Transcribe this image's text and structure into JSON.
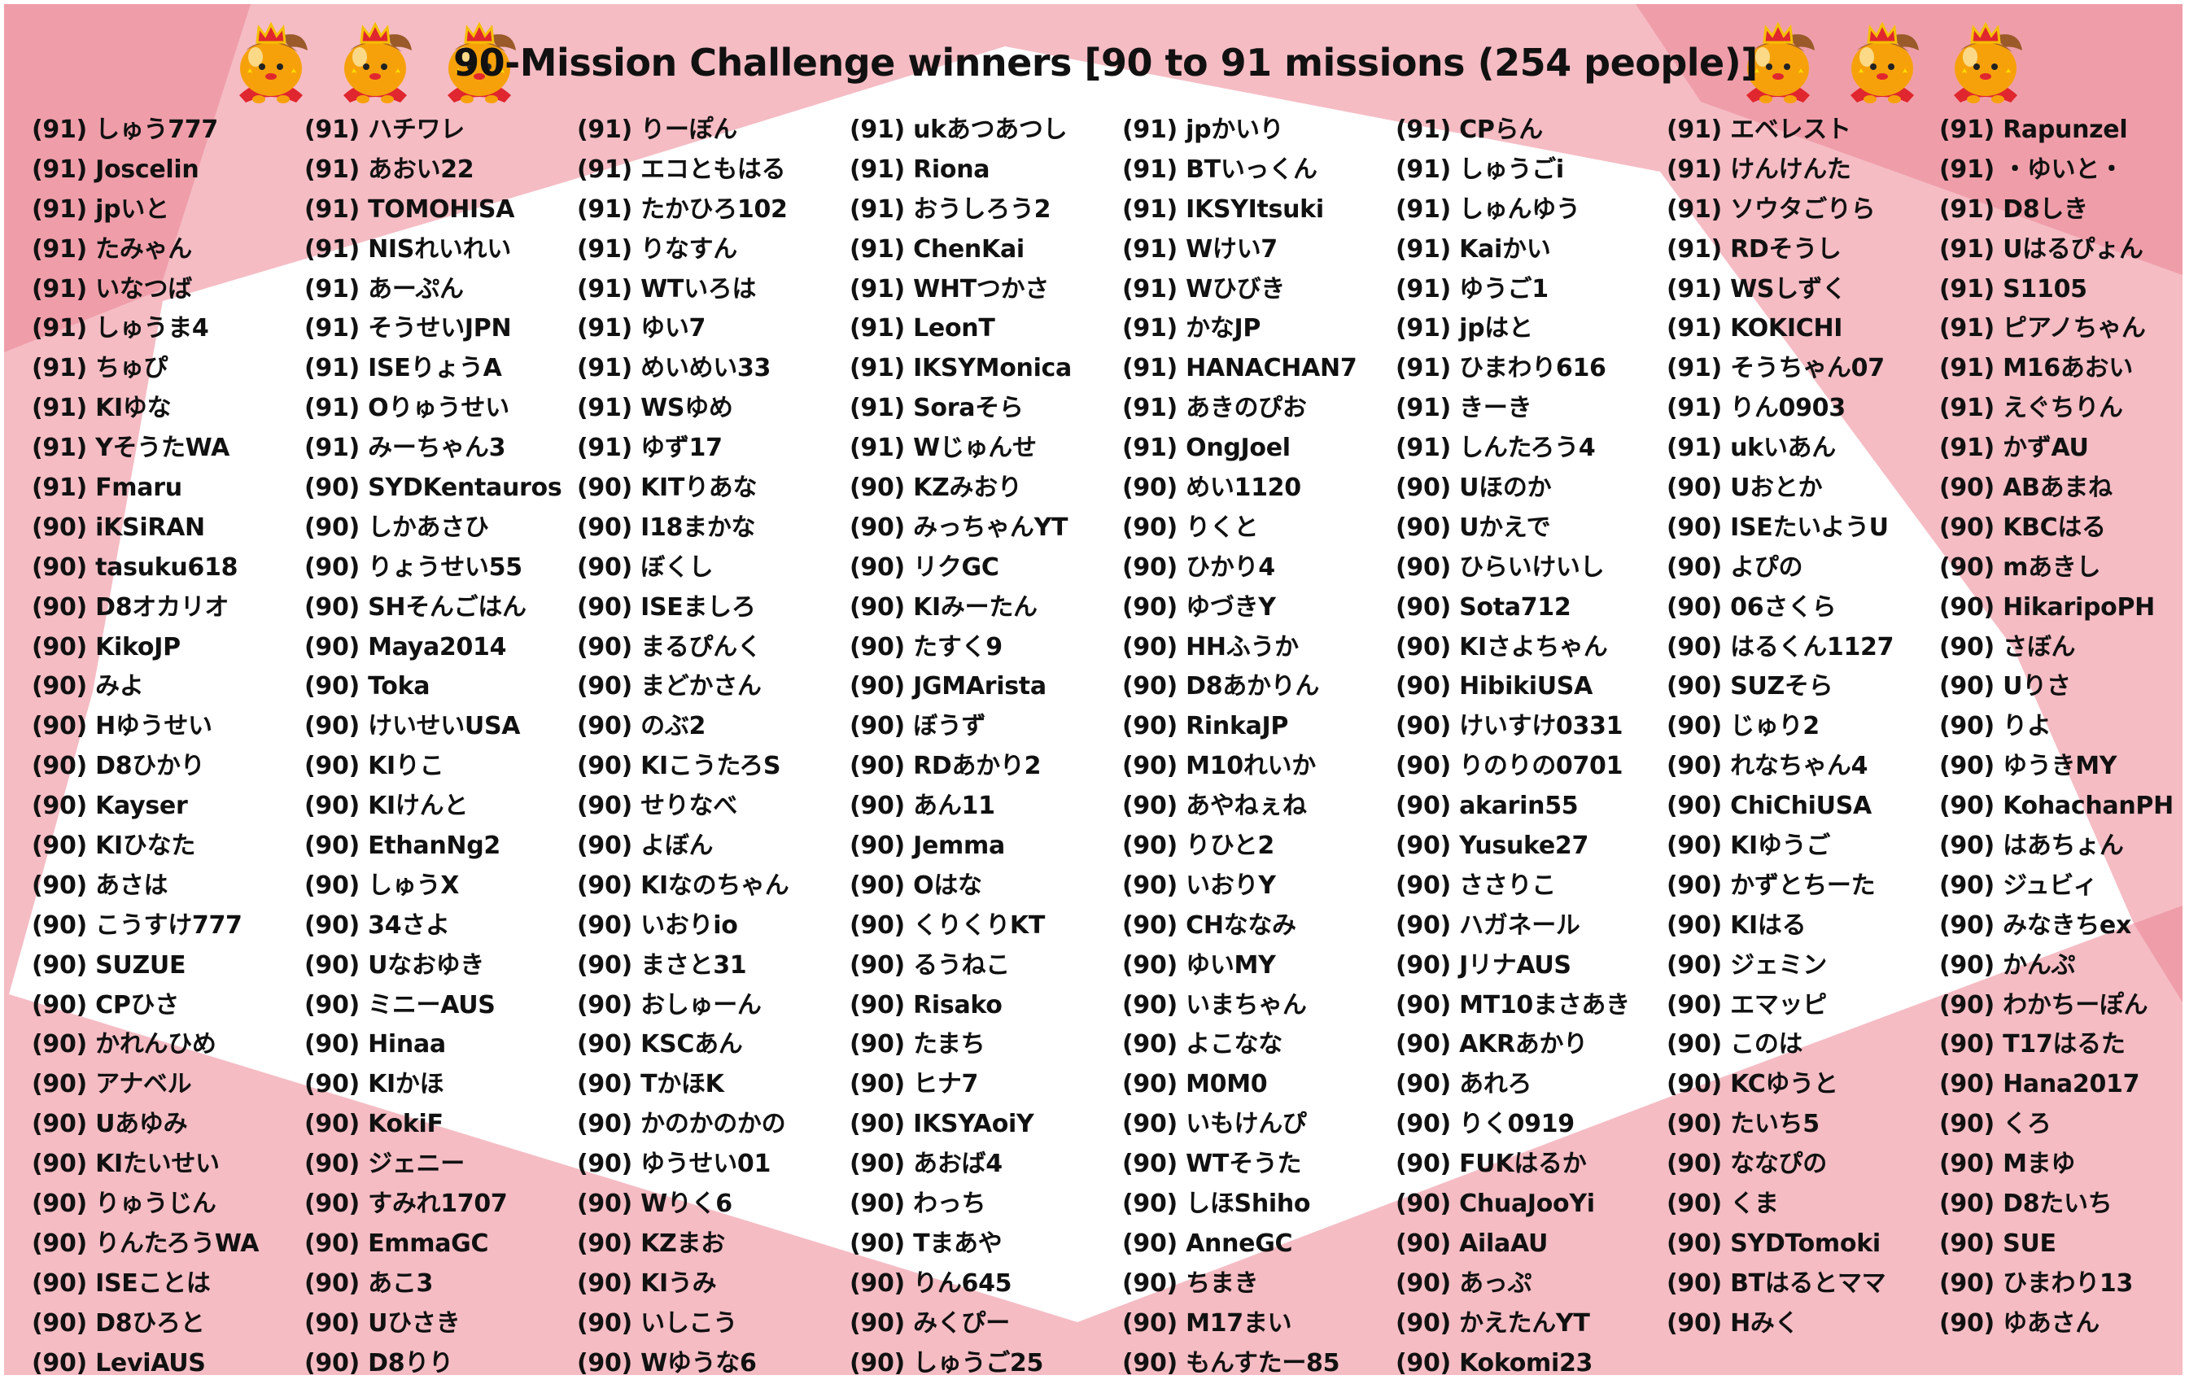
{
  "title": "90-Mission Challenge winners [90 to 91 missions (254 people)]",
  "colors": {
    "light_pink": "#f5bcc4",
    "dark_pink": "#ef9ea9",
    "text": "#111111",
    "mascot_orange": "#f6a10a",
    "cape_red": "#e0262e"
  },
  "mascot_icon": "crowned-orange-mascot-icon",
  "winners": {
    "columns": [
      [
        "(91) しゅう777",
        "(91) Joscelin",
        "(91) jpいと",
        "(91) たみゃん",
        "(91) いなつば",
        "(91) しゅうま4",
        "(91) ちゅぴ",
        "(91) KIゆな",
        "(91) YそうたWA",
        "(91) Fmaru",
        "(90) iKSiRAN",
        "(90) tasuku618",
        "(90) D8オカリオ",
        "(90) KikoJP",
        "(90) みよ",
        "(90) Hゆうせい",
        "(90) D8ひかり",
        "(90) Kayser",
        "(90) KIひなた",
        "(90) あさは",
        "(90) こうすけ777",
        "(90) SUZUE",
        "(90) CPひさ",
        "(90) かれんひめ",
        "(90) アナベル",
        "(90) Uあゆみ",
        "(90) KIたいせい",
        "(90) りゅうじん",
        "(90) りんたろうWA",
        "(90) ISEことは",
        "(90) D8ひろと",
        "(90) LeviAUS"
      ],
      [
        "(91) ハチワレ",
        "(91) あおい22",
        "(91) TOMOHISA",
        "(91) NISれいれい",
        "(91) あーぷん",
        "(91) そうせいJPN",
        "(91) ISEりょうA",
        "(91) Oりゅうせい",
        "(91) みーちゃん3",
        "(90) SYDKentauros",
        "(90) しかあさひ",
        "(90) りょうせい55",
        "(90) SHそんごはん",
        "(90) Maya2014",
        "(90) Toka",
        "(90) けいせいUSA",
        "(90) KIりこ",
        "(90) KIけんと",
        "(90) EthanNg2",
        "(90) しゅうX",
        "(90) 34さよ",
        "(90) Uなおゆき",
        "(90) ミニーAUS",
        "(90) Hinaa",
        "(90) KIかほ",
        "(90) KokiF",
        "(90) ジェニー",
        "(90) すみれ1707",
        "(90) EmmaGC",
        "(90) あこ3",
        "(90) Uひさき",
        "(90) D8りり"
      ],
      [
        "(91) りーぽん",
        "(91) エコともはる",
        "(91) たかひろ102",
        "(91) りなすん",
        "(91) WTいろは",
        "(91) ゆい7",
        "(91) めいめい33",
        "(91) WSゆめ",
        "(91) ゆず17",
        "(90) KITりあな",
        "(90) I18まかな",
        "(90) ぼくし",
        "(90) ISEましろ",
        "(90) まるぴんく",
        "(90) まどかさん",
        "(90) のぶ2",
        "(90) KIこうたろS",
        "(90) せりなべ",
        "(90) よぼん",
        "(90) KIなのちゃん",
        "(90) いおりio",
        "(90) まさと31",
        "(90) おしゅーん",
        "(90) KSCあん",
        "(90) TかほK",
        "(90) かのかのかの",
        "(90) ゆうせい01",
        "(90) Wりく6",
        "(90) KZまお",
        "(90) KIうみ",
        "(90) いしこう",
        "(90) Wゆうな6"
      ],
      [
        "(91) ukあつあつし",
        "(91) Riona",
        "(91) おうしろう2",
        "(91) ChenKai",
        "(91) WHTつかさ",
        "(91) LeonT",
        "(91) IKSYMonica",
        "(91) Soraそら",
        "(91) Wじゅんせ",
        "(90) KZみおり",
        "(90) みっちゃんYT",
        "(90) リクGC",
        "(90) KIみーたん",
        "(90) たすく9",
        "(90) JGMArista",
        "(90) ぼうず",
        "(90) RDあかり2",
        "(90) あん11",
        "(90) Jemma",
        "(90) Oはな",
        "(90) くりくりKT",
        "(90) るうねこ",
        "(90) Risako",
        "(90) たまち",
        "(90) ヒナ7",
        "(90) IKSYAoiY",
        "(90) あおば4",
        "(90) わっち",
        "(90) Tまあや",
        "(90) りん645",
        "(90) みくぴー",
        "(90) しゅうご25"
      ],
      [
        "(91) jpかいり",
        "(91) BTいっくん",
        "(91) IKSYItsuki",
        "(91) Wけい7",
        "(91) Wひびき",
        "(91) かなJP",
        "(91) HANACHAN7",
        "(91) あきのぴお",
        "(91) OngJoel",
        "(90) めい1120",
        "(90) りくと",
        "(90) ひかり4",
        "(90) ゆづきY",
        "(90) HHふうか",
        "(90) D8あかりん",
        "(90) RinkaJP",
        "(90) M10れいか",
        "(90) あやねぇね",
        "(90) りひと2",
        "(90) いおりY",
        "(90) CHななみ",
        "(90) ゆいMY",
        "(90) いまちゃん",
        "(90) よこなな",
        "(90) M0M0",
        "(90) いもけんぴ",
        "(90) WTそうた",
        "(90) しほShiho",
        "(90) AnneGC",
        "(90) ちまき",
        "(90) M17まい",
        "(90) もんすたー85"
      ],
      [
        "(91) CPらん",
        "(91) しゅうごi",
        "(91) しゅんゆう",
        "(91) Kaiかい",
        "(91) ゆうご1",
        "(91) jpはと",
        "(91) ひまわり616",
        "(91) きーき",
        "(91) しんたろう4",
        "(90) Uほのか",
        "(90) Uかえで",
        "(90) ひらいけいし",
        "(90) Sota712",
        "(90) KIさよちゃん",
        "(90) HibikiUSA",
        "(90) けいすけ0331",
        "(90) りのりの0701",
        "(90) akarin55",
        "(90) Yusuke27",
        "(90) ささりこ",
        "(90) ハガネール",
        "(90) JリナAUS",
        "(90) MT10まさあき",
        "(90) AKRあかり",
        "(90) あれろ",
        "(90) りく0919",
        "(90) FUKはるか",
        "(90) ChuaJooYi",
        "(90) AilaAU",
        "(90) あっぷ",
        "(90) かえたんYT",
        "(90) Kokomi23"
      ],
      [
        "(91) エベレスト",
        "(91) けんけんた",
        "(91) ソウタごりら",
        "(91) RDそうし",
        "(91) WSしずく",
        "(91) KOKICHI",
        "(91) そうちゃん07",
        "(91) りん0903",
        "(91) ukいあん",
        "(90) Uおとか",
        "(90) ISEたいようU",
        "(90) よぴの",
        "(90) 06さくら",
        "(90) はるくん1127",
        "(90) SUZそら",
        "(90) じゅり2",
        "(90) れなちゃん4",
        "(90) ChiChiUSA",
        "(90) KIゆうご",
        "(90) かずとちーた",
        "(90) KIはる",
        "(90) ジェミン",
        "(90) エマッピ",
        "(90) このは",
        "(90) KCゆうと",
        "(90) たいち5",
        "(90) ななぴの",
        "(90) くま",
        "(90) SYDTomoki",
        "(90) BTはるとママ",
        "(90) Hみく"
      ],
      [
        "(91) Rapunzel",
        "(91) ・ゆいと・",
        "(91) D8しき",
        "(91) Uはるぴょん",
        "(91) S1105",
        "(91) ピアノちゃん",
        "(91) M16あおい",
        "(91) えぐちりん",
        "(91) かずAU",
        "(90) ABあまね",
        "(90) KBCはる",
        "(90) mあきし",
        "(90) HikaripoPH",
        "(90) さぼん",
        "(90) Uりさ",
        "(90) りよ",
        "(90) ゆうきMY",
        "(90) KohachanPH",
        "(90) はあちょん",
        "(90) ジュビィ",
        "(90) みなきちex",
        "(90) かんぷ",
        "(90) わかちーぽん",
        "(90) T17はるた",
        "(90) Hana2017",
        "(90) くろ",
        "(90) Mまゆ",
        "(90) D8たいち",
        "(90) SUE",
        "(90) ひまわり13",
        "(90) ゆあさん"
      ]
    ]
  }
}
